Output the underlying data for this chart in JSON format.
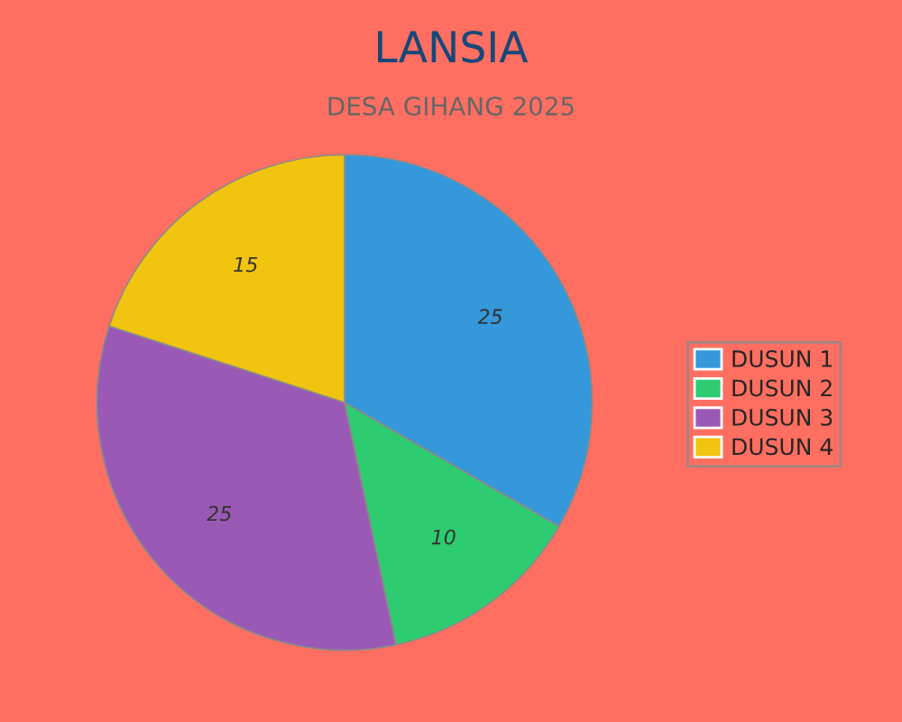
{
  "chart_data": {
    "type": "pie",
    "title": "LANSIA",
    "subtitle": "DESA GIHANG 2025",
    "categories": [
      "DUSUN 1",
      "DUSUN 2",
      "DUSUN 3",
      "DUSUN 4"
    ],
    "values": [
      25,
      10,
      25,
      15
    ],
    "colors": [
      "#3498db",
      "#2ecc71",
      "#9b59b6",
      "#f1c40f"
    ],
    "data_labels": true,
    "legend": "right"
  }
}
